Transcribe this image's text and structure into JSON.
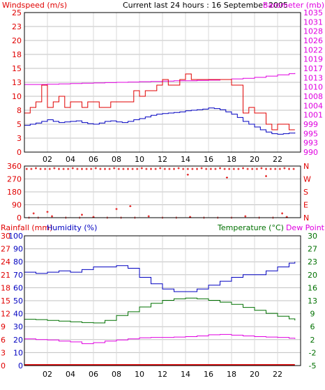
{
  "title": "Current last 24 hours : 16 September 2005",
  "colors": {
    "wind": "#e00000",
    "gust": "#e00000",
    "wind_avg": "#0000c0",
    "pressure": "#e000e0",
    "direction": "#e00000",
    "humidity": "#0000c0",
    "temperature": "#007000",
    "dewpoint": "#e000e0",
    "rain": "#e00000",
    "grid": "#c0c0c0",
    "hour_marker": "#d8d8d8"
  },
  "chart_data": [
    {
      "type": "line",
      "panel": "wind-pressure",
      "left_axis_label": "Windspeed (m/s)",
      "right_axis_label": "Barometer (mb)",
      "xlim": [
        0,
        24
      ],
      "x_ticks": [
        "02",
        "04",
        "06",
        "08",
        "10",
        "12",
        "14",
        "16",
        "18",
        "20",
        "22"
      ],
      "y_left_ticks": [
        "0",
        "3",
        "5",
        "8",
        "10",
        "13",
        "15",
        "18",
        "20",
        "23",
        "25"
      ],
      "y_left_lim": [
        0,
        25
      ],
      "y_right_ticks": [
        "990",
        "993",
        "995",
        "999",
        "1001",
        "1004",
        "1008",
        "1010",
        "1013",
        "1017",
        "1019",
        "1022",
        "1026",
        "1028",
        "1031",
        "1035"
      ],
      "y_right_lim": [
        990,
        1035
      ],
      "series": [
        {
          "name": "Windspeed (m/s)",
          "role": "gust",
          "x": [
            0,
            0.5,
            1,
            1.5,
            2,
            2.5,
            3,
            3.5,
            4,
            4.5,
            5,
            5.5,
            6,
            6.5,
            7,
            7.5,
            8,
            8.5,
            9,
            9.5,
            10,
            10.5,
            11,
            11.5,
            12,
            12.5,
            13,
            13.5,
            14,
            14.5,
            15,
            15.5,
            16,
            16.5,
            17,
            17.5,
            18,
            18.5,
            19,
            19.5,
            20,
            20.5,
            21,
            21.5,
            22,
            22.5,
            23,
            23.5
          ],
          "values": [
            7,
            8,
            9,
            12,
            8,
            9,
            10,
            8,
            9,
            9,
            8,
            9,
            9,
            8,
            8,
            9,
            9,
            9,
            9,
            11,
            10,
            11,
            11,
            12,
            13,
            12,
            12,
            13,
            14,
            13,
            13,
            13,
            13,
            13,
            13,
            13,
            12,
            12,
            7,
            8,
            7,
            7,
            5,
            4,
            5,
            5,
            4,
            4
          ]
        },
        {
          "name": "Windspeed (m/s)",
          "role": "average",
          "x": [
            0,
            0.5,
            1,
            1.5,
            2,
            2.5,
            3,
            3.5,
            4,
            4.5,
            5,
            5.5,
            6,
            6.5,
            7,
            7.5,
            8,
            8.5,
            9,
            9.5,
            10,
            10.5,
            11,
            11.5,
            12,
            12.5,
            13,
            13.5,
            14,
            14.5,
            15,
            15.5,
            16,
            16.5,
            17,
            17.5,
            18,
            18.5,
            19,
            19.5,
            20,
            20.5,
            21,
            21.5,
            22,
            22.5,
            23,
            23.5
          ],
          "values": [
            4.8,
            5,
            5.2,
            5.5,
            5.8,
            5.5,
            5.3,
            5.4,
            5.5,
            5.6,
            5.3,
            5.1,
            5,
            5.2,
            5.5,
            5.6,
            5.4,
            5.3,
            5.5,
            5.8,
            6,
            6.3,
            6.6,
            6.8,
            6.9,
            7,
            7.1,
            7.2,
            7.4,
            7.5,
            7.6,
            7.7,
            7.9,
            7.8,
            7.6,
            7.2,
            6.8,
            6.2,
            5.5,
            5,
            4.5,
            4,
            3.6,
            3.3,
            3.2,
            3.3,
            3.4,
            3.5
          ]
        },
        {
          "name": "Barometer (mb)",
          "axis": "right",
          "x": [
            0,
            1,
            2,
            3,
            4,
            5,
            6,
            7,
            8,
            9,
            10,
            11,
            12,
            13,
            14,
            15,
            16,
            17,
            18,
            19,
            20,
            21,
            22,
            23,
            23.5
          ],
          "values": [
            1011.8,
            1011.8,
            1011.9,
            1012,
            1012.1,
            1012.2,
            1012.3,
            1012.4,
            1012.5,
            1012.6,
            1012.7,
            1012.8,
            1012.9,
            1013,
            1013,
            1013.1,
            1013.2,
            1013.4,
            1013.6,
            1013.8,
            1014.1,
            1014.5,
            1014.9,
            1015.3,
            1015.5
          ]
        }
      ]
    },
    {
      "type": "scatter",
      "panel": "wind-direction",
      "xlim": [
        0,
        24
      ],
      "y_left_ticks": [
        "0",
        "90",
        "180",
        "270",
        "360"
      ],
      "y_left_lim": [
        0,
        360
      ],
      "y_right_ticks": [
        "N",
        "E",
        "S",
        "W",
        "N"
      ],
      "series": [
        {
          "name": "Wind direction",
          "x": [
            0.2,
            0.6,
            1,
            1.4,
            1.8,
            2.2,
            2.6,
            3,
            3.4,
            3.8,
            4.2,
            4.6,
            5,
            5.4,
            5.8,
            6.2,
            6.6,
            7,
            7.4,
            7.8,
            8.2,
            8.6,
            9,
            9.4,
            9.8,
            10.2,
            10.6,
            11,
            11.4,
            11.8,
            12.2,
            12.6,
            13,
            13.4,
            13.8,
            14.2,
            14.6,
            15,
            15.4,
            15.8,
            16.2,
            16.6,
            17,
            17.4,
            17.8,
            18.2,
            18.6,
            19,
            19.4,
            19.8,
            20.2,
            20.6,
            21,
            21.4,
            21.8,
            22.2,
            22.6,
            23,
            23.4,
            0.4,
            1.2,
            2.4,
            3.6,
            4.8,
            6,
            7.2,
            8.4,
            9.6,
            10.8,
            12,
            13.2,
            14.4,
            15.6,
            16.8,
            18,
            19.2,
            20.4,
            21.6,
            22.8,
            0.8,
            2,
            5,
            8,
            9.2,
            14.2,
            17.6,
            21,
            22.4
          ],
          "values": [
            340,
            340,
            345,
            340,
            340,
            340,
            345,
            340,
            340,
            340,
            345,
            340,
            340,
            340,
            340,
            345,
            340,
            340,
            340,
            345,
            340,
            340,
            340,
            340,
            340,
            345,
            340,
            340,
            340,
            345,
            340,
            340,
            340,
            345,
            340,
            340,
            340,
            340,
            345,
            340,
            340,
            340,
            345,
            340,
            340,
            340,
            340,
            345,
            340,
            340,
            340,
            345,
            340,
            340,
            340,
            340,
            345,
            340,
            340,
            0,
            0,
            10,
            0,
            0,
            5,
            0,
            0,
            0,
            10,
            0,
            0,
            5,
            0,
            0,
            0,
            10,
            0,
            0,
            5,
            30,
            40,
            20,
            60,
            80,
            300,
            280,
            290,
            30
          ]
        }
      ]
    },
    {
      "type": "line",
      "panel": "temperature-humidity",
      "left_axis_label": "Rainfall (mm)",
      "humidity_axis_label": "Humidity (%)",
      "right_axis_label": "Temperature (°C)",
      "dewpoint_label": "Dew Point",
      "xlim": [
        0,
        24
      ],
      "rain_ticks": [
        "0",
        "3",
        "6",
        "9",
        "12",
        "15",
        "18",
        "21",
        "24",
        "27",
        "30"
      ],
      "rain_lim": [
        0,
        30
      ],
      "humidity_ticks": [
        "0",
        "10",
        "20",
        "30",
        "40",
        "50",
        "60",
        "70",
        "80",
        "90",
        "100"
      ],
      "humidity_lim": [
        0,
        100
      ],
      "temp_ticks": [
        "-5",
        "-2",
        "2",
        "6",
        "9",
        "13",
        "16",
        "20",
        "23",
        "27",
        "30"
      ],
      "temp_lim": [
        -5,
        30
      ],
      "series": [
        {
          "name": "Humidity (%)",
          "x": [
            0,
            1,
            2,
            3,
            4,
            5,
            6,
            7,
            8,
            9,
            10,
            11,
            12,
            13,
            14,
            15,
            16,
            17,
            18,
            19,
            20,
            21,
            22,
            23,
            23.5
          ],
          "values": [
            72,
            71,
            72,
            73,
            72,
            74,
            76,
            76,
            77,
            75,
            68,
            63,
            59,
            57,
            57,
            59,
            62,
            65,
            68,
            70,
            70,
            73,
            76,
            79,
            80
          ]
        },
        {
          "name": "Temperature (°C)",
          "axis": "temp",
          "x": [
            0,
            1,
            2,
            3,
            4,
            5,
            6,
            7,
            8,
            9,
            10,
            11,
            12,
            13,
            14,
            15,
            16,
            17,
            18,
            19,
            20,
            21,
            22,
            23,
            23.5
          ],
          "values": [
            7.5,
            7.4,
            7.2,
            7,
            6.8,
            6.6,
            6.5,
            7.2,
            8.5,
            9.5,
            10.8,
            11.8,
            12.6,
            13,
            13.2,
            13,
            12.6,
            12.1,
            11.5,
            10.7,
            9.9,
            9.1,
            8.3,
            7.6,
            7.2
          ]
        },
        {
          "name": "Dew Point",
          "axis": "temp",
          "x": [
            0,
            1,
            2,
            3,
            4,
            5,
            6,
            7,
            8,
            9,
            10,
            11,
            12,
            13,
            14,
            15,
            16,
            17,
            18,
            19,
            20,
            21,
            22,
            23,
            23.5
          ],
          "values": [
            2.2,
            2,
            1.9,
            1.6,
            1.4,
            0.9,
            1.2,
            1.6,
            1.9,
            2.2,
            2.5,
            2.6,
            2.6,
            2.7,
            2.8,
            3,
            3.3,
            3.4,
            3.2,
            3,
            2.8,
            2.7,
            2.6,
            2.4,
            2.2
          ]
        },
        {
          "name": "Rainfall (mm)",
          "axis": "rain",
          "x": [
            0,
            23.5
          ],
          "values": [
            0,
            0
          ]
        }
      ]
    }
  ]
}
